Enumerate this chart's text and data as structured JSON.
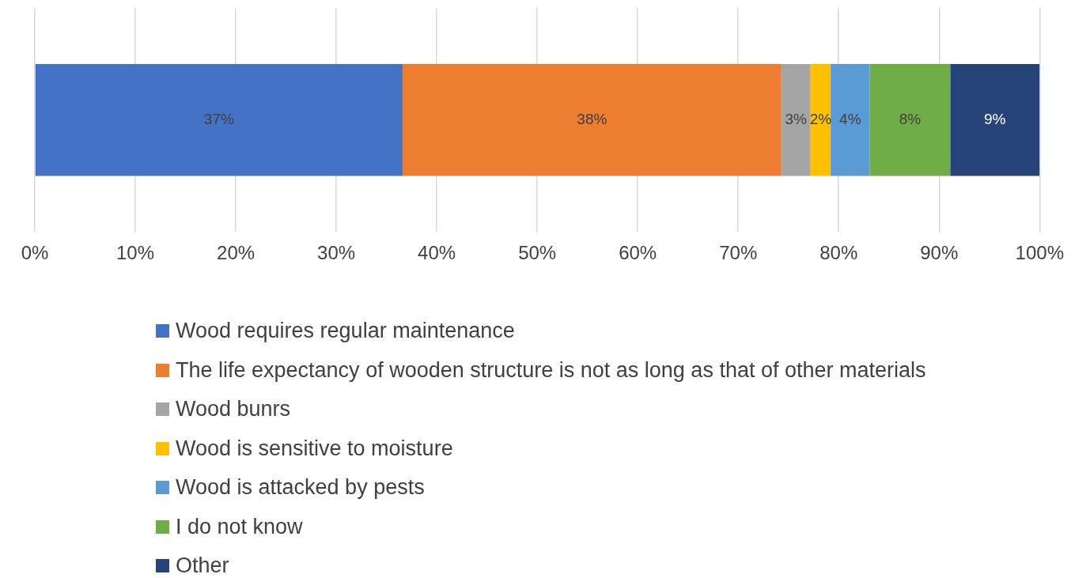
{
  "chart_data": {
    "type": "bar",
    "orientation": "horizontal",
    "stacked": true,
    "categories": [
      null
    ],
    "series": [
      {
        "name": "Wood requires regular maintenance",
        "color": "#4472c4",
        "values": [
          36.6
        ],
        "value_labels": [
          "37%"
        ]
      },
      {
        "name": "The life expectancy of wooden structure is not as long as that of other materials",
        "color": "#ed7d31",
        "values": [
          37.7
        ],
        "value_labels": [
          "38%"
        ]
      },
      {
        "name": "Wood bunrs",
        "color": "#a5a5a5",
        "values": [
          2.9
        ],
        "value_labels": [
          "3%"
        ]
      },
      {
        "name": "Wood is sensitive to moisture",
        "color": "#ffc000",
        "values": [
          2.0
        ],
        "value_labels": [
          "2%"
        ]
      },
      {
        "name": "Wood is attacked by pests",
        "color": "#5b9bd5",
        "values": [
          3.9
        ],
        "value_labels": [
          "4%"
        ]
      },
      {
        "name": "I do not know",
        "color": "#70ad47",
        "values": [
          8.0
        ],
        "value_labels": [
          "8%"
        ]
      },
      {
        "name": "Other",
        "color": "#264478",
        "values": [
          8.9
        ],
        "value_labels": [
          "9%"
        ]
      }
    ],
    "xlim": [
      0,
      100
    ],
    "xticks": [
      {
        "value": 0,
        "label": "0%"
      },
      {
        "value": 10,
        "label": "10%"
      },
      {
        "value": 20,
        "label": "20%"
      },
      {
        "value": 30,
        "label": "30%"
      },
      {
        "value": 40,
        "label": "40%"
      },
      {
        "value": 50,
        "label": "50%"
      },
      {
        "value": 60,
        "label": "60%"
      },
      {
        "value": 70,
        "label": "70%"
      },
      {
        "value": 80,
        "label": "80%"
      },
      {
        "value": 90,
        "label": "90%"
      },
      {
        "value": 100,
        "label": "100%"
      }
    ],
    "grid": "x",
    "legend": "bottom"
  }
}
